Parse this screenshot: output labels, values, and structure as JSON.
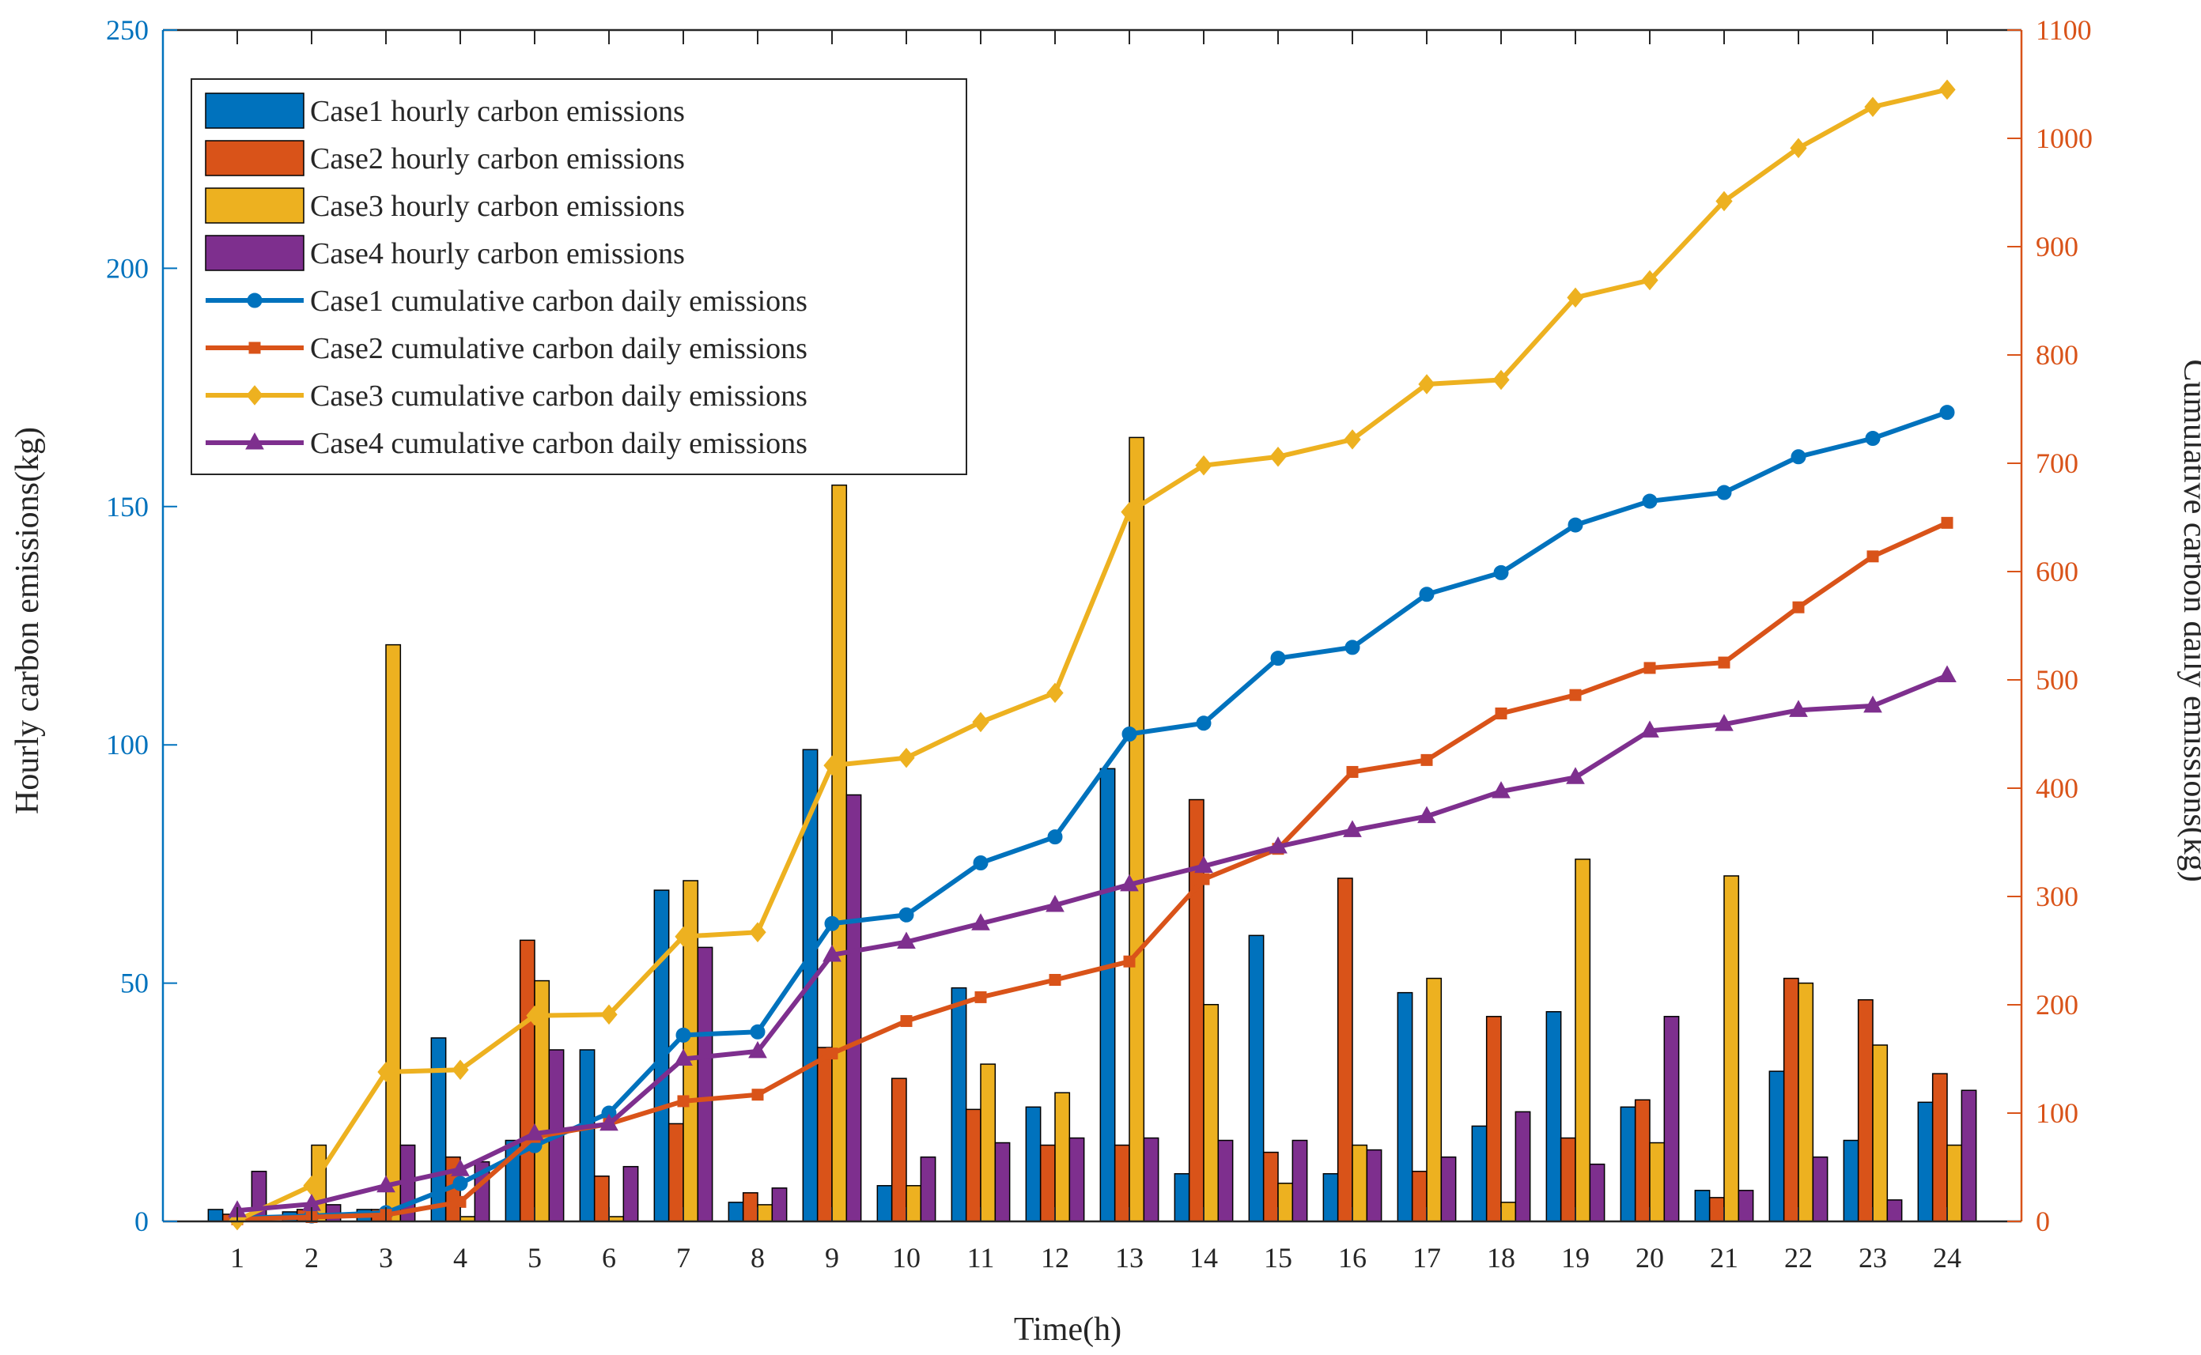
{
  "chart_data": {
    "type": "bar",
    "title": "",
    "xlabel": "Time(h)",
    "ylabel": "Hourly carbon emissions(kg)",
    "ylabel_right": "Cumulative carbon daily emissions(kg)",
    "ylim": [
      0,
      250
    ],
    "ylim_right": [
      0,
      1100
    ],
    "yticks": [
      0,
      50,
      100,
      150,
      200,
      250
    ],
    "yticks_right": [
      0,
      100,
      200,
      300,
      400,
      500,
      600,
      700,
      800,
      900,
      1000,
      1100
    ],
    "categories": [
      "1",
      "2",
      "3",
      "4",
      "5",
      "6",
      "7",
      "8",
      "9",
      "10",
      "11",
      "12",
      "13",
      "14",
      "15",
      "16",
      "17",
      "18",
      "19",
      "20",
      "21",
      "22",
      "23",
      "24"
    ],
    "legend_position": "top-left",
    "bar_series": [
      {
        "name": "Case1 hourly carbon emissions",
        "color": "#0072BD",
        "values": [
          2.5,
          2,
          2.5,
          38.5,
          17,
          36,
          69.5,
          4,
          99,
          7.5,
          49,
          24,
          95,
          10,
          60,
          10,
          48,
          20,
          44,
          24,
          6.5,
          31.5,
          17,
          25
        ]
      },
      {
        "name": "Case2 hourly carbon emissions",
        "color": "#D95319",
        "values": [
          1.5,
          2.5,
          2.5,
          13.5,
          59,
          9.5,
          20.5,
          6,
          36.5,
          30,
          23.5,
          16,
          16,
          88.5,
          14.5,
          72,
          10.5,
          43,
          17.5,
          25.5,
          5,
          51,
          46.5,
          31
        ]
      },
      {
        "name": "Case3 hourly carbon emissions",
        "color": "#EDB120",
        "values": [
          1,
          16,
          121,
          1,
          50.5,
          1,
          71.5,
          3.5,
          154.5,
          7.5,
          33,
          27,
          164.5,
          45.5,
          8,
          16,
          51,
          4,
          76,
          16.5,
          72.5,
          50,
          37,
          16
        ]
      },
      {
        "name": "Case4 hourly carbon emissions",
        "color": "#7E2F8E",
        "values": [
          10.5,
          3.5,
          16,
          12.5,
          36,
          11.5,
          57.5,
          7,
          89.5,
          13.5,
          16.5,
          17.5,
          17.5,
          17,
          17,
          15,
          13.5,
          23,
          12,
          43,
          6.5,
          13.5,
          4.5,
          27.5
        ]
      }
    ],
    "line_series": [
      {
        "name": "Case1 cumulative carbon daily emissions",
        "color": "#0072BD",
        "marker": "circle",
        "values": [
          3,
          5,
          8,
          35,
          70,
          100,
          172,
          175,
          275,
          283,
          331,
          355,
          450,
          460,
          520,
          530,
          579,
          599,
          643,
          665,
          673,
          706,
          723,
          747
        ]
      },
      {
        "name": "Case2 cumulative carbon daily emissions",
        "color": "#D95319",
        "marker": "square",
        "values": [
          2,
          4,
          6,
          18,
          78,
          90,
          111,
          117,
          155,
          185,
          207,
          223,
          240,
          316,
          344,
          415,
          426,
          469,
          486,
          511,
          516,
          567,
          614,
          645
        ]
      },
      {
        "name": "Case3 cumulative carbon daily emissions",
        "color": "#EDB120",
        "marker": "diamond",
        "values": [
          1,
          33,
          138,
          140,
          190,
          191,
          263,
          267,
          421,
          428,
          461,
          488,
          655,
          698,
          706,
          722,
          773,
          777,
          853,
          869,
          942,
          991,
          1029,
          1045
        ]
      },
      {
        "name": "Case4 cumulative carbon daily emissions",
        "color": "#7E2F8E",
        "marker": "triangle",
        "values": [
          10,
          16,
          33,
          48,
          81,
          90,
          150,
          157,
          246,
          258,
          275,
          292,
          311,
          328,
          346,
          361,
          374,
          397,
          410,
          453,
          459,
          472,
          476,
          504
        ]
      }
    ]
  }
}
